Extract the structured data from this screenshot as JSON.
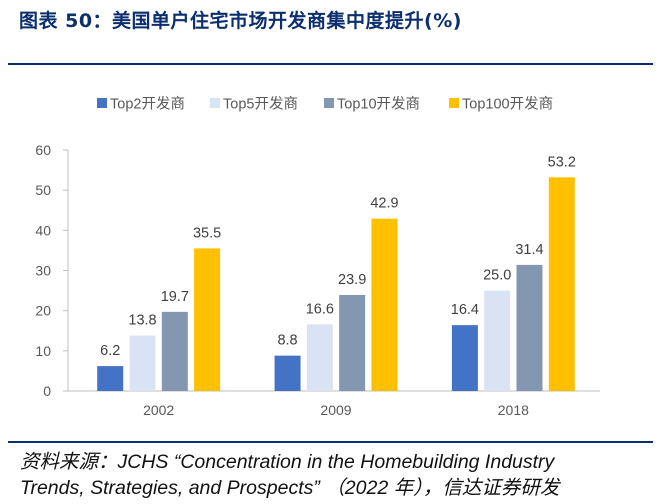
{
  "figure": {
    "title": "图表 50：美国单户住宅市场开发商集中度提升(%)",
    "source_line1": "资料来源：JCHS “Concentration in the Homebuilding Industry",
    "source_line2": "Trends, Strategies, and Prospects” （2022 年），信达证券研发"
  },
  "chart_data": {
    "type": "bar",
    "title": "",
    "xlabel": "",
    "ylabel": "",
    "ylim": [
      0,
      60
    ],
    "yticks": [
      0,
      10,
      20,
      30,
      40,
      50,
      60
    ],
    "categories": [
      "2002",
      "2009",
      "2018"
    ],
    "series": [
      {
        "name": "Top2开发商",
        "color": "#4472c4",
        "values": [
          6.2,
          8.8,
          16.4
        ]
      },
      {
        "name": "Top5开发商",
        "color": "#dae3f3",
        "values": [
          13.8,
          16.6,
          25.0
        ]
      },
      {
        "name": "Top10开发商",
        "color": "#8497b0",
        "values": [
          19.7,
          23.9,
          31.4
        ]
      },
      {
        "name": "Top100开发商",
        "color": "#ffc000",
        "values": [
          35.5,
          42.9,
          53.2
        ]
      }
    ],
    "legend_position": "top",
    "grid": false
  }
}
